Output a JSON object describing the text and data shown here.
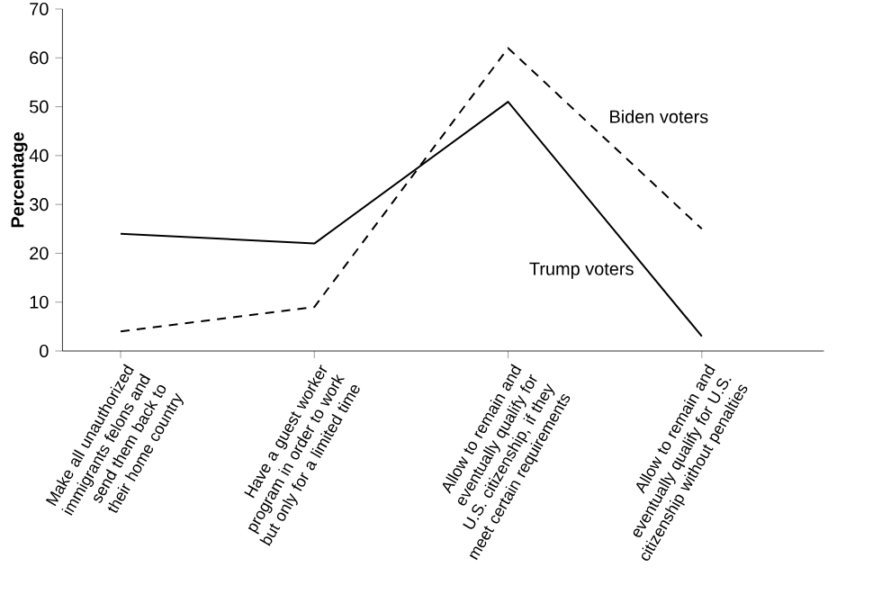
{
  "chart_data": {
    "type": "line",
    "ylabel": "Percentage",
    "categories": [
      "Make all unauthorized immigrants felons and send them back to their home country",
      "Have a guest worker program in order to work but only for a limited time",
      "Allow to remain and eventually qualify for U.S. citizenship, if they meet certain requirements",
      "Allow to remain and eventually qualify for U.S. citizenship without penalties"
    ],
    "series": [
      {
        "name": "Trump voters",
        "color": "#000000",
        "line_style": "solid",
        "values": [
          24,
          22,
          51,
          3
        ]
      },
      {
        "name": "Biden voters",
        "color": "#000000",
        "line_style": "dashed",
        "values": [
          4,
          9,
          62,
          25
        ]
      }
    ],
    "ylim": [
      0,
      70
    ],
    "yticks": [
      0,
      10,
      20,
      30,
      40,
      50,
      60,
      70
    ],
    "grid": false
  }
}
